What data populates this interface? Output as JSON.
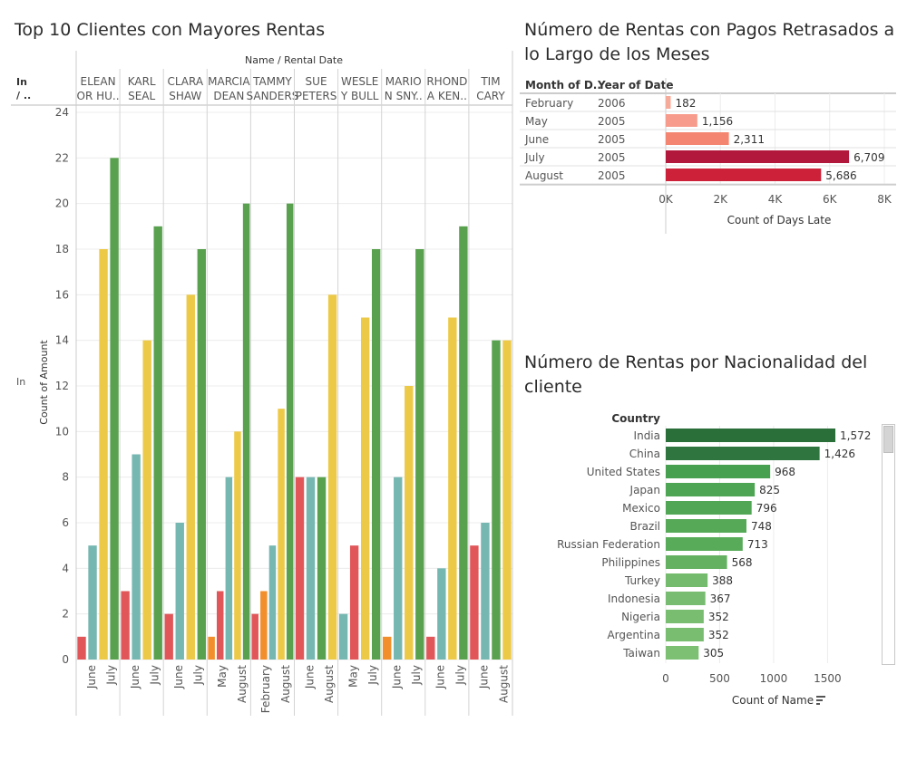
{
  "dashboard": {
    "title_top10": "Top 10 Clientes con Mayores Rentas",
    "title_late": "Número de Rentas con Pagos Retrasados a lo Largo de los Meses",
    "title_country": "Número de Rentas por Nacionalidad del cliente"
  },
  "chart_data": [
    {
      "type": "bar",
      "title": "Top 10 Clientes con Mayores Rentas",
      "header": "Name / Rental Date",
      "row_header": "In / ..",
      "row_value": "In",
      "ylabel": "Count of Amount",
      "ylim": [
        0,
        24
      ],
      "yticks": [
        0,
        2,
        4,
        6,
        8,
        10,
        12,
        14,
        16,
        18,
        20,
        22,
        24
      ],
      "colors": {
        "red": "#e15759",
        "teal": "#76b7b2",
        "yellow": "#edc948",
        "green": "#59a14f",
        "orange": "#f28e2b"
      },
      "groups": [
        {
          "name": [
            "ELEAN",
            "OR HU.."
          ],
          "months": [
            "June",
            "July"
          ],
          "bars": [
            {
              "v": 1,
              "c": "red"
            },
            {
              "v": 5,
              "c": "teal"
            },
            {
              "v": 18,
              "c": "yellow"
            },
            {
              "v": 22,
              "c": "green"
            }
          ]
        },
        {
          "name": [
            "KARL",
            "SEAL"
          ],
          "months": [
            "June",
            "July"
          ],
          "bars": [
            {
              "v": 3,
              "c": "red"
            },
            {
              "v": 9,
              "c": "teal"
            },
            {
              "v": 14,
              "c": "yellow"
            },
            {
              "v": 19,
              "c": "green"
            }
          ]
        },
        {
          "name": [
            "CLARA",
            "SHAW"
          ],
          "months": [
            "June",
            "July"
          ],
          "bars": [
            {
              "v": 2,
              "c": "red"
            },
            {
              "v": 6,
              "c": "teal"
            },
            {
              "v": 16,
              "c": "yellow"
            },
            {
              "v": 18,
              "c": "green"
            }
          ]
        },
        {
          "name": [
            "MARCIA",
            "DEAN"
          ],
          "months": [
            "May",
            "August"
          ],
          "bars": [
            {
              "v": 1,
              "c": "orange"
            },
            {
              "v": 3,
              "c": "red"
            },
            {
              "v": 8,
              "c": "teal"
            },
            {
              "v": 10,
              "c": "yellow"
            },
            {
              "v": 20,
              "c": "green"
            }
          ]
        },
        {
          "name": [
            "TAMMY",
            "SANDERS"
          ],
          "months": [
            "February",
            "August"
          ],
          "bars": [
            {
              "v": 2,
              "c": "red"
            },
            {
              "v": 3,
              "c": "orange"
            },
            {
              "v": 5,
              "c": "teal"
            },
            {
              "v": 11,
              "c": "yellow"
            },
            {
              "v": 20,
              "c": "green"
            }
          ]
        },
        {
          "name": [
            "SUE",
            "PETERS"
          ],
          "months": [
            "June",
            "August"
          ],
          "bars": [
            {
              "v": 8,
              "c": "red"
            },
            {
              "v": 8,
              "c": "teal"
            },
            {
              "v": 8,
              "c": "green"
            },
            {
              "v": 16,
              "c": "yellow"
            }
          ]
        },
        {
          "name": [
            "WESLE",
            "Y BULL"
          ],
          "months": [
            "May",
            "July"
          ],
          "bars": [
            {
              "v": 2,
              "c": "teal"
            },
            {
              "v": 5,
              "c": "red"
            },
            {
              "v": 15,
              "c": "yellow"
            },
            {
              "v": 18,
              "c": "green"
            }
          ]
        },
        {
          "name": [
            "MARIO",
            "N SNY.."
          ],
          "months": [
            "June",
            "July"
          ],
          "bars": [
            {
              "v": 1,
              "c": "orange"
            },
            {
              "v": 8,
              "c": "teal"
            },
            {
              "v": 12,
              "c": "yellow"
            },
            {
              "v": 18,
              "c": "green"
            }
          ]
        },
        {
          "name": [
            "RHOND",
            "A KEN.."
          ],
          "months": [
            "June",
            "July"
          ],
          "bars": [
            {
              "v": 1,
              "c": "red"
            },
            {
              "v": 4,
              "c": "teal"
            },
            {
              "v": 15,
              "c": "yellow"
            },
            {
              "v": 19,
              "c": "green"
            }
          ]
        },
        {
          "name": [
            "TIM",
            "CARY"
          ],
          "months": [
            "June",
            "August"
          ],
          "bars": [
            {
              "v": 5,
              "c": "red"
            },
            {
              "v": 6,
              "c": "teal"
            },
            {
              "v": 14,
              "c": "green"
            },
            {
              "v": 14,
              "c": "yellow"
            }
          ]
        }
      ]
    },
    {
      "type": "bar",
      "orientation": "horizontal",
      "title": "Número de Rentas con Pagos Retrasados a lo Largo de los Meses",
      "row_headers": [
        "Month of D..",
        "Year of Date"
      ],
      "xlabel": "Count of Days Late",
      "xlim": [
        0,
        8000
      ],
      "xticks": [
        "0K",
        "2K",
        "4K",
        "6K",
        "8K"
      ],
      "rows": [
        {
          "month": "February",
          "year": "2006",
          "value": 182,
          "label": "182",
          "color": "#f5aa9a"
        },
        {
          "month": "May",
          "year": "2005",
          "value": 1156,
          "label": "1,156",
          "color": "#f79c8c"
        },
        {
          "month": "June",
          "year": "2005",
          "value": 2311,
          "label": "2,311",
          "color": "#f48571"
        },
        {
          "month": "July",
          "year": "2005",
          "value": 6709,
          "label": "6,709",
          "color": "#b2173c"
        },
        {
          "month": "August",
          "year": "2005",
          "value": 5686,
          "label": "5,686",
          "color": "#cc2139"
        }
      ]
    },
    {
      "type": "bar",
      "orientation": "horizontal",
      "title": "Número de Rentas por Nacionalidad del cliente",
      "row_header": "Country",
      "xlabel": "Count of Name",
      "xlim": [
        0,
        1700
      ],
      "xticks": [
        0,
        500,
        1000,
        1500
      ],
      "rows": [
        {
          "country": "India",
          "value": 1572,
          "label": "1,572",
          "color": "#2a6e3a"
        },
        {
          "country": "China",
          "value": 1426,
          "label": "1,426",
          "color": "#2f7540"
        },
        {
          "country": "United States",
          "value": 968,
          "label": "968",
          "color": "#47a050"
        },
        {
          "country": "Japan",
          "value": 825,
          "label": "825",
          "color": "#4ea553"
        },
        {
          "country": "Mexico",
          "value": 796,
          "label": "796",
          "color": "#50a654"
        },
        {
          "country": "Brazil",
          "value": 748,
          "label": "748",
          "color": "#55a957"
        },
        {
          "country": "Russian Federation",
          "value": 713,
          "label": "713",
          "color": "#58ab59"
        },
        {
          "country": "Philippines",
          "value": 568,
          "label": "568",
          "color": "#64b162"
        },
        {
          "country": "Turkey",
          "value": 388,
          "label": "388",
          "color": "#75bb6e"
        },
        {
          "country": "Indonesia",
          "value": 367,
          "label": "367",
          "color": "#77bc70"
        },
        {
          "country": "Nigeria",
          "value": 352,
          "label": "352",
          "color": "#79bd71"
        },
        {
          "country": "Argentina",
          "value": 352,
          "label": "352",
          "color": "#79bd71"
        },
        {
          "country": "Taiwan",
          "value": 305,
          "label": "305",
          "color": "#7dc074"
        }
      ]
    }
  ]
}
